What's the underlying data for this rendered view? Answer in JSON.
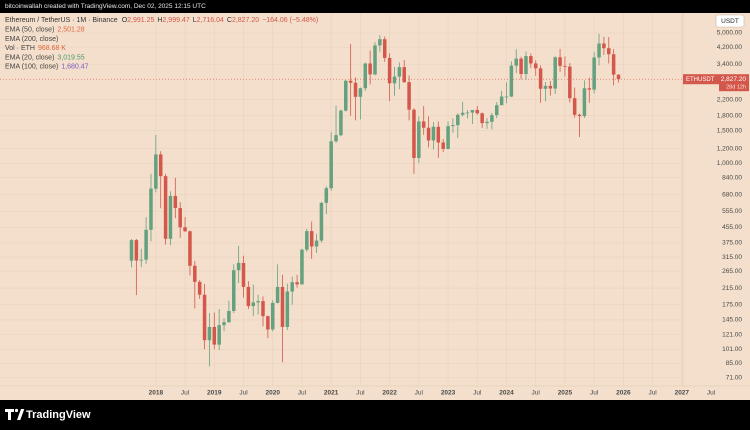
{
  "header": {
    "credit": "bitcoinwallah created with TradingView.com, Dec 02, 2025 12:15 UTC"
  },
  "chart_data": {
    "type": "candlestick",
    "symbol": "Ethereum / TetherUS · 1M · Binance",
    "ohlc_labels": [
      {
        "key": "O",
        "label": "2,991.25"
      },
      {
        "key": "H",
        "label": "2,999.47"
      },
      {
        "key": "L",
        "label": "2,716.04"
      },
      {
        "key": "C",
        "label": "2,827.20"
      }
    ],
    "change_label": "−164.06 (−5.48%)",
    "indicators": [
      {
        "name": "EMA (50, close)",
        "label": "2,501.28",
        "color": "#e0663e"
      },
      {
        "name": "EMA (200, close)"
      },
      {
        "name": "Vol · ETH",
        "label": "968.68 K",
        "color": "#e0663e"
      },
      {
        "name": "EMA (20, close)",
        "label": "3,019.55",
        "color": "#4f9a6a"
      },
      {
        "name": "EMA (100, close)",
        "label": "1,680.47",
        "color": "#7a5cc8"
      }
    ],
    "currency": "USDT",
    "last_price": {
      "symbol": "ETHUSDT",
      "label": "2,827.20",
      "countdown": "28d 12h"
    },
    "up_color": "#65a07f",
    "down_color": "#d4574b",
    "log_scale": true,
    "grid": true,
    "x": [
      "2017-08",
      "2017-09",
      "2017-10",
      "2017-11",
      "2017-12",
      "2018-01",
      "2018-02",
      "2018-03",
      "2018-04",
      "2018-05",
      "2018-06",
      "2018-07",
      "2018-08",
      "2018-09",
      "2018-10",
      "2018-11",
      "2018-12",
      "2019-01",
      "2019-02",
      "2019-03",
      "2019-04",
      "2019-05",
      "2019-06",
      "2019-07",
      "2019-08",
      "2019-09",
      "2019-10",
      "2019-11",
      "2019-12",
      "2020-01",
      "2020-02",
      "2020-03",
      "2020-04",
      "2020-05",
      "2020-06",
      "2020-07",
      "2020-08",
      "2020-09",
      "2020-10",
      "2020-11",
      "2020-12",
      "2021-01",
      "2021-02",
      "2021-03",
      "2021-04",
      "2021-05",
      "2021-06",
      "2021-07",
      "2021-08",
      "2021-09",
      "2021-10",
      "2021-11",
      "2021-12",
      "2022-01",
      "2022-02",
      "2022-03",
      "2022-04",
      "2022-05",
      "2022-06",
      "2022-07",
      "2022-08",
      "2022-09",
      "2022-10",
      "2022-11",
      "2022-12",
      "2023-01",
      "2023-02",
      "2023-03",
      "2023-04",
      "2023-05",
      "2023-06",
      "2023-07",
      "2023-08",
      "2023-09",
      "2023-10",
      "2023-11",
      "2023-12",
      "2024-01",
      "2024-02",
      "2024-03",
      "2024-04",
      "2024-05",
      "2024-06",
      "2024-07",
      "2024-08",
      "2024-09",
      "2024-10",
      "2024-11",
      "2024-12",
      "2025-01",
      "2025-02",
      "2025-03",
      "2025-04",
      "2025-05",
      "2025-06",
      "2025-07",
      "2025-08",
      "2025-09",
      "2025-10",
      "2025-11",
      "2025-12"
    ],
    "open": [
      301.13,
      388.5,
      302,
      305,
      441,
      733,
      1118,
      855,
      395,
      670,
      577,
      455,
      433,
      283,
      232,
      198,
      113,
      133,
      107,
      136,
      141,
      162,
      268,
      293,
      218,
      172,
      180,
      183,
      152,
      129,
      179,
      218,
      133,
      206,
      231,
      225,
      345,
      434,
      359,
      386,
      615,
      737,
      1314,
      1417,
      1919,
      2773,
      2707,
      2275,
      2530,
      3433,
      3000,
      4288,
      4631,
      3676,
      2688,
      2919,
      3282,
      2727,
      1942,
      1070,
      1679,
      1554,
      1328,
      1572,
      1295,
      1196,
      1585,
      1605,
      1822,
      1870,
      1874,
      1934,
      1856,
      1645,
      1671,
      1815,
      2052,
      2282,
      2283,
      3340,
      3646,
      3014,
      3761,
      3434,
      3232,
      2512,
      2603,
      2520,
      3706,
      3332,
      3300,
      2237,
      1822,
      1794,
      2528,
      2486,
      3697,
      4391,
      4145,
      3848,
      2991.25
    ],
    "high": [
      394,
      394,
      349,
      515,
      880,
      1420,
      1163,
      880,
      710,
      838,
      621,
      516,
      437,
      300,
      237,
      226,
      158,
      159,
      166,
      148,
      184,
      288,
      362,
      320,
      234,
      224,
      198,
      194,
      153,
      185,
      288,
      253,
      227,
      247,
      253,
      349,
      446,
      488,
      420,
      622,
      755,
      1476,
      2041,
      1943,
      2800,
      4372,
      2891,
      2551,
      3466,
      4027,
      4460,
      4868,
      4778,
      3900,
      3285,
      3480,
      3580,
      2965,
      1975,
      1785,
      2030,
      1789,
      1664,
      1678,
      1353,
      1680,
      1743,
      1857,
      2141,
      1930,
      1930,
      2029,
      1875,
      1750,
      1865,
      2133,
      2445,
      2717,
      3522,
      4093,
      3730,
      3977,
      3887,
      3563,
      3350,
      2730,
      2769,
      3745,
      4107,
      3745,
      3450,
      2550,
      1850,
      2788,
      2880,
      3941,
      4956,
      4769,
      4755,
      4100,
      2999.47
    ],
    "low": [
      278,
      197,
      278,
      290,
      383,
      700,
      575,
      367,
      365,
      509,
      400,
      429,
      251,
      167,
      188,
      101,
      81.8,
      101,
      100,
      126,
      140,
      158,
      229,
      191,
      166,
      152,
      155,
      134,
      116,
      126,
      178,
      86,
      128,
      175,
      216,
      224,
      336,
      308,
      332,
      377,
      535,
      715,
      1290,
      1400,
      1900,
      1800,
      1700,
      1719,
      2450,
      2651,
      2970,
      3964,
      3503,
      2159,
      2300,
      2500,
      2700,
      1700,
      881,
      1006,
      1422,
      1220,
      1190,
      1073,
      1150,
      1190,
      1461,
      1368,
      1785,
      1740,
      1626,
      1825,
      1550,
      1531,
      1521,
      1750,
      2050,
      2100,
      2266,
      3057,
      2817,
      2810,
      3240,
      2945,
      2111,
      2150,
      2310,
      2357,
      3099,
      2920,
      2120,
      1760,
      1385,
      1752,
      2111,
      2373,
      3354,
      3815,
      3435,
      2623,
      2716.04
    ],
    "close": [
      388.5,
      302,
      305,
      441,
      733,
      1118,
      855,
      395,
      670,
      577,
      455,
      433,
      283,
      232,
      198,
      113,
      133,
      107,
      136,
      141,
      162,
      268,
      293,
      218,
      172,
      180,
      183,
      152,
      129,
      179,
      218,
      133,
      206,
      231,
      225,
      345,
      434,
      359,
      386,
      615,
      737,
      1314,
      1417,
      1919,
      2773,
      2707,
      2275,
      2530,
      3433,
      3000,
      4288,
      4631,
      3676,
      2688,
      2919,
      3282,
      2727,
      1942,
      1070,
      1679,
      1554,
      1328,
      1572,
      1295,
      1196,
      1585,
      1605,
      1822,
      1870,
      1874,
      1934,
      1856,
      1645,
      1671,
      1815,
      2052,
      2282,
      2283,
      3340,
      3646,
      3014,
      3761,
      3434,
      3232,
      2512,
      2603,
      2520,
      3706,
      3332,
      3300,
      2237,
      1822,
      1794,
      2528,
      2486,
      3697,
      4391,
      4145,
      3848,
      2991.25,
      2827.2
    ],
    "xlim": [
      "2015-05",
      "2028-03"
    ],
    "xticks": [
      {
        "value": "2018-01",
        "label": "2018"
      },
      {
        "value": "2018-07",
        "label": "Jul"
      },
      {
        "value": "2019-01",
        "label": "2019"
      },
      {
        "value": "2019-07",
        "label": "Jul"
      },
      {
        "value": "2020-01",
        "label": "2020"
      },
      {
        "value": "2020-07",
        "label": "Jul"
      },
      {
        "value": "2021-01",
        "label": "2021"
      },
      {
        "value": "2021-07",
        "label": "Jul"
      },
      {
        "value": "2022-01",
        "label": "2022"
      },
      {
        "value": "2022-07",
        "label": "Jul"
      },
      {
        "value": "2023-01",
        "label": "2023"
      },
      {
        "value": "2023-07",
        "label": "Jul"
      },
      {
        "value": "2024-01",
        "label": "2024"
      },
      {
        "value": "2024-07",
        "label": "Jul"
      },
      {
        "value": "2025-01",
        "label": "2025"
      },
      {
        "value": "2025-07",
        "label": "Jul"
      },
      {
        "value": "2026-01",
        "label": "2026"
      },
      {
        "value": "2026-07",
        "label": "Jul"
      },
      {
        "value": "2027-01",
        "label": "2027"
      },
      {
        "value": "2027-07",
        "label": "Jul"
      }
    ],
    "ylim": [
      65,
      6320
    ],
    "yticks": [
      {
        "value": 5000,
        "label": "5,000.00"
      },
      {
        "value": 4200,
        "label": "4,200.00"
      },
      {
        "value": 3400,
        "label": "3,400.00"
      },
      {
        "value": 2200,
        "label": "2,200.00"
      },
      {
        "value": 1800,
        "label": "1,800.00"
      },
      {
        "value": 1500,
        "label": "1,500.00"
      },
      {
        "value": 1200,
        "label": "1,200.00"
      },
      {
        "value": 1000,
        "label": "1,000.00"
      },
      {
        "value": 840,
        "label": "840.00"
      },
      {
        "value": 680,
        "label": "680.00"
      },
      {
        "value": 555,
        "label": "555.00"
      },
      {
        "value": 455,
        "label": "455.00"
      },
      {
        "value": 375,
        "label": "375.00"
      },
      {
        "value": 315,
        "label": "315.00"
      },
      {
        "value": 265,
        "label": "265.00"
      },
      {
        "value": 215,
        "label": "215.00"
      },
      {
        "value": 175,
        "label": "175.00"
      },
      {
        "value": 145,
        "label": "145.00"
      },
      {
        "value": 121,
        "label": "121.00"
      },
      {
        "value": 101,
        "label": "101.00"
      },
      {
        "value": 85,
        "label": "85.00"
      },
      {
        "value": 71,
        "label": "71.00"
      }
    ]
  },
  "footer": {
    "logo": "TradingView"
  }
}
